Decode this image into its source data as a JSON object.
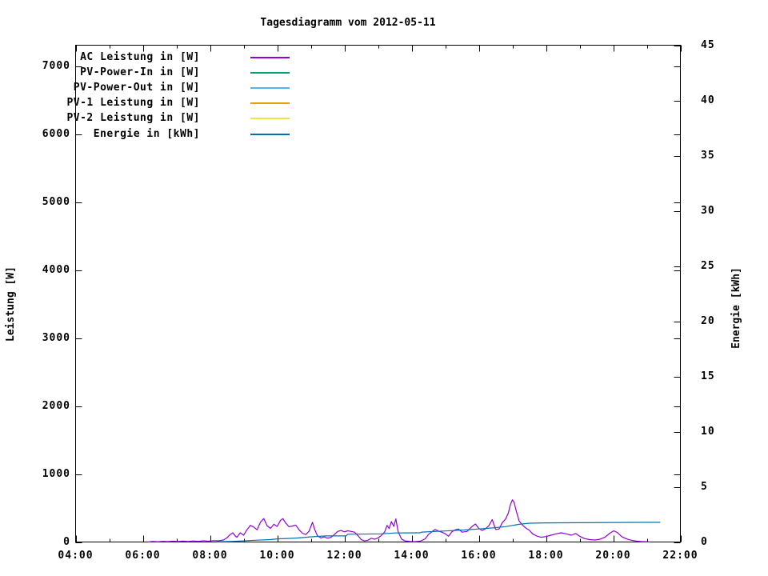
{
  "chart_data": {
    "type": "line",
    "title": "Tagesdiagramm vom 2012-05-11",
    "x_axis": {
      "unit": "time",
      "range_hours": [
        4,
        22
      ],
      "major_tick_step_hours": 2,
      "minor_tick_step_hours": 1,
      "tick_labels": [
        "04:00",
        "06:00",
        "08:00",
        "10:00",
        "12:00",
        "14:00",
        "16:00",
        "18:00",
        "20:00",
        "22:00"
      ]
    },
    "y_axis_left": {
      "label": "Leistung [W]",
      "range": [
        0,
        7310
      ],
      "tick_step": 1000,
      "ticks": [
        0,
        1000,
        2000,
        3000,
        4000,
        5000,
        6000,
        7000
      ],
      "tick_labels": [
        "0",
        "1000",
        "2000",
        "3000",
        "4000",
        "5000",
        "6000",
        "7000"
      ]
    },
    "y_axis_right": {
      "label": "Energie [kWh]",
      "range": [
        0,
        45
      ],
      "tick_step": 5,
      "ticks": [
        0,
        5,
        10,
        15,
        20,
        25,
        30,
        35,
        40,
        45
      ],
      "tick_labels": [
        "0",
        "5",
        "10",
        "15",
        "20",
        "25",
        "30",
        "35",
        "40",
        "45"
      ]
    },
    "legend_position": "top-left-inside",
    "series": [
      {
        "name": "AC Leistung in [W]",
        "color": "#9400d3",
        "axis": "left",
        "points": [
          [
            6.15,
            0
          ],
          [
            6.3,
            8
          ],
          [
            6.45,
            4
          ],
          [
            6.6,
            10
          ],
          [
            6.75,
            6
          ],
          [
            6.9,
            12
          ],
          [
            7.05,
            8
          ],
          [
            7.2,
            14
          ],
          [
            7.35,
            8
          ],
          [
            7.5,
            15
          ],
          [
            7.65,
            10
          ],
          [
            7.8,
            18
          ],
          [
            7.95,
            12
          ],
          [
            8.1,
            20
          ],
          [
            8.25,
            18
          ],
          [
            8.4,
            30
          ],
          [
            8.5,
            60
          ],
          [
            8.6,
            110
          ],
          [
            8.68,
            135
          ],
          [
            8.75,
            90
          ],
          [
            8.8,
            70
          ],
          [
            8.9,
            135
          ],
          [
            9.0,
            100
          ],
          [
            9.1,
            180
          ],
          [
            9.2,
            245
          ],
          [
            9.3,
            220
          ],
          [
            9.4,
            180
          ],
          [
            9.5,
            290
          ],
          [
            9.6,
            345
          ],
          [
            9.7,
            240
          ],
          [
            9.8,
            200
          ],
          [
            9.9,
            260
          ],
          [
            10.0,
            230
          ],
          [
            10.1,
            320
          ],
          [
            10.17,
            345
          ],
          [
            10.25,
            280
          ],
          [
            10.35,
            225
          ],
          [
            10.45,
            235
          ],
          [
            10.55,
            250
          ],
          [
            10.65,
            180
          ],
          [
            10.75,
            130
          ],
          [
            10.85,
            110
          ],
          [
            10.95,
            160
          ],
          [
            11.05,
            290
          ],
          [
            11.12,
            180
          ],
          [
            11.2,
            90
          ],
          [
            11.3,
            60
          ],
          [
            11.4,
            75
          ],
          [
            11.5,
            55
          ],
          [
            11.6,
            70
          ],
          [
            11.7,
            110
          ],
          [
            11.8,
            155
          ],
          [
            11.9,
            170
          ],
          [
            12.0,
            150
          ],
          [
            12.1,
            165
          ],
          [
            12.2,
            155
          ],
          [
            12.3,
            145
          ],
          [
            12.4,
            95
          ],
          [
            12.5,
            35
          ],
          [
            12.6,
            15
          ],
          [
            12.7,
            25
          ],
          [
            12.8,
            55
          ],
          [
            12.9,
            40
          ],
          [
            13.0,
            60
          ],
          [
            13.1,
            95
          ],
          [
            13.2,
            150
          ],
          [
            13.27,
            245
          ],
          [
            13.33,
            200
          ],
          [
            13.4,
            300
          ],
          [
            13.47,
            230
          ],
          [
            13.53,
            340
          ],
          [
            13.6,
            150
          ],
          [
            13.7,
            45
          ],
          [
            13.8,
            15
          ],
          [
            13.95,
            8
          ],
          [
            14.1,
            5
          ],
          [
            14.25,
            12
          ],
          [
            14.4,
            45
          ],
          [
            14.5,
            110
          ],
          [
            14.6,
            150
          ],
          [
            14.7,
            185
          ],
          [
            14.8,
            160
          ],
          [
            14.9,
            145
          ],
          [
            15.0,
            120
          ],
          [
            15.1,
            85
          ],
          [
            15.2,
            150
          ],
          [
            15.3,
            180
          ],
          [
            15.4,
            190
          ],
          [
            15.5,
            145
          ],
          [
            15.65,
            155
          ],
          [
            15.8,
            230
          ],
          [
            15.9,
            265
          ],
          [
            16.0,
            200
          ],
          [
            16.1,
            170
          ],
          [
            16.2,
            195
          ],
          [
            16.3,
            240
          ],
          [
            16.4,
            330
          ],
          [
            16.5,
            185
          ],
          [
            16.6,
            190
          ],
          [
            16.7,
            285
          ],
          [
            16.8,
            340
          ],
          [
            16.88,
            430
          ],
          [
            16.94,
            550
          ],
          [
            17.0,
            620
          ],
          [
            17.05,
            585
          ],
          [
            17.12,
            450
          ],
          [
            17.2,
            310
          ],
          [
            17.3,
            250
          ],
          [
            17.4,
            205
          ],
          [
            17.5,
            175
          ],
          [
            17.6,
            120
          ],
          [
            17.72,
            90
          ],
          [
            17.85,
            70
          ],
          [
            18.0,
            80
          ],
          [
            18.15,
            100
          ],
          [
            18.3,
            120
          ],
          [
            18.45,
            135
          ],
          [
            18.6,
            120
          ],
          [
            18.75,
            100
          ],
          [
            18.88,
            125
          ],
          [
            19.0,
            85
          ],
          [
            19.15,
            50
          ],
          [
            19.3,
            35
          ],
          [
            19.45,
            30
          ],
          [
            19.6,
            40
          ],
          [
            19.75,
            70
          ],
          [
            19.9,
            130
          ],
          [
            20.02,
            165
          ],
          [
            20.12,
            140
          ],
          [
            20.25,
            80
          ],
          [
            20.4,
            45
          ],
          [
            20.55,
            25
          ],
          [
            20.7,
            12
          ],
          [
            20.85,
            6
          ],
          [
            21.0,
            3
          ],
          [
            21.1,
            0
          ]
        ]
      },
      {
        "name": "PV-Power-In in [W]",
        "color": "#009e73",
        "axis": "left",
        "points": []
      },
      {
        "name": "PV-Power-Out in [W]",
        "color": "#56b4e9",
        "axis": "left",
        "points": []
      },
      {
        "name": "PV-1 Leistung in [W]",
        "color": "#e69f00",
        "axis": "left",
        "points": []
      },
      {
        "name": "PV-2 Leistung in [W]",
        "color": "#f0e442",
        "axis": "left",
        "points": []
      },
      {
        "name": "Energie in [kWh]",
        "color": "#0072b2",
        "axis": "right",
        "points": [
          [
            8.2,
            0.02
          ],
          [
            8.6,
            0.05
          ],
          [
            9.0,
            0.1
          ],
          [
            9.4,
            0.17
          ],
          [
            9.8,
            0.22
          ],
          [
            10.0,
            0.28
          ],
          [
            10.3,
            0.32
          ],
          [
            10.6,
            0.36
          ],
          [
            10.9,
            0.44
          ],
          [
            11.4,
            0.54
          ],
          [
            11.45,
            0.55
          ],
          [
            12.05,
            0.55
          ],
          [
            12.1,
            0.7
          ],
          [
            13.1,
            0.74
          ],
          [
            13.5,
            0.82
          ],
          [
            14.25,
            0.83
          ],
          [
            14.3,
            0.9
          ],
          [
            15.0,
            1.0
          ],
          [
            15.5,
            1.08
          ],
          [
            16.0,
            1.18
          ],
          [
            16.5,
            1.3
          ],
          [
            16.8,
            1.4
          ],
          [
            17.0,
            1.5
          ],
          [
            17.2,
            1.6
          ],
          [
            17.5,
            1.7
          ],
          [
            18.0,
            1.73
          ],
          [
            19.0,
            1.75
          ],
          [
            20.0,
            1.77
          ],
          [
            21.0,
            1.78
          ],
          [
            21.4,
            1.78
          ]
        ]
      }
    ]
  }
}
